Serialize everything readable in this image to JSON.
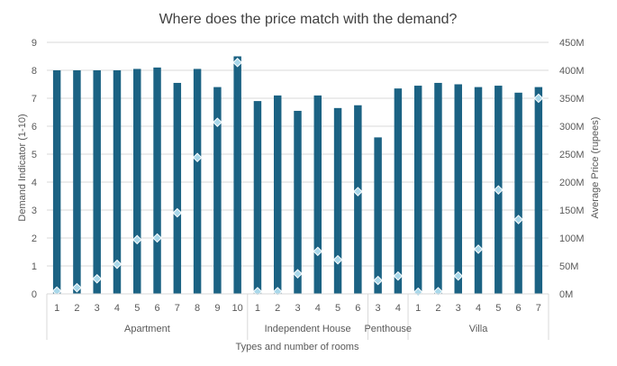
{
  "chart_data": {
    "type": "bar",
    "title": "Where does the price match with the demand?",
    "xlabel": "Types and number of rooms",
    "ylabel": "Demand Indicator (1-10)",
    "y2label": "Average Price (rupees)",
    "ylim": [
      0,
      9
    ],
    "y_ticks": [
      "0",
      "1",
      "2",
      "3",
      "4",
      "5",
      "6",
      "7",
      "8",
      "9"
    ],
    "y2lim": [
      0,
      450
    ],
    "y2_unit": "M",
    "y2_ticks": [
      "0M",
      "50M",
      "100M",
      "150M",
      "200M",
      "250M",
      "300M",
      "350M",
      "400M",
      "450M"
    ],
    "grid": "horizontal",
    "colors": {
      "bar": "#1b6283",
      "marker_fill": "#a9d8ea",
      "marker_stroke": "#ffffff",
      "grid": "#d9d9d9",
      "text": "#595959",
      "title": "#404040"
    },
    "groups": [
      {
        "name": "Apartment",
        "categories": [
          "1",
          "2",
          "3",
          "4",
          "5",
          "6",
          "7",
          "8",
          "9",
          "10"
        ]
      },
      {
        "name": "Independent House",
        "categories": [
          "1",
          "2",
          "3",
          "4",
          "5",
          "6"
        ]
      },
      {
        "name": "Penthouse",
        "categories": [
          "3",
          "4"
        ]
      },
      {
        "name": "Villa",
        "categories": [
          "1",
          "2",
          "3",
          "4",
          "5",
          "6",
          "7"
        ]
      }
    ],
    "series": [
      {
        "axis": "left",
        "kind": "bar",
        "values": [
          8.0,
          8.0,
          8.0,
          8.0,
          8.05,
          8.1,
          7.55,
          8.05,
          7.4,
          8.5,
          6.9,
          7.1,
          6.55,
          7.1,
          6.65,
          6.75,
          5.6,
          7.35,
          7.45,
          7.55,
          7.5,
          7.4,
          7.45,
          7.2,
          7.4
        ]
      },
      {
        "axis": "right",
        "kind": "marker",
        "values": [
          5,
          11,
          27,
          53,
          97,
          100,
          145,
          244,
          307,
          414,
          4,
          4,
          36,
          76,
          61,
          183,
          24,
          32,
          3,
          4,
          32,
          80,
          186,
          133,
          350
        ]
      }
    ]
  }
}
